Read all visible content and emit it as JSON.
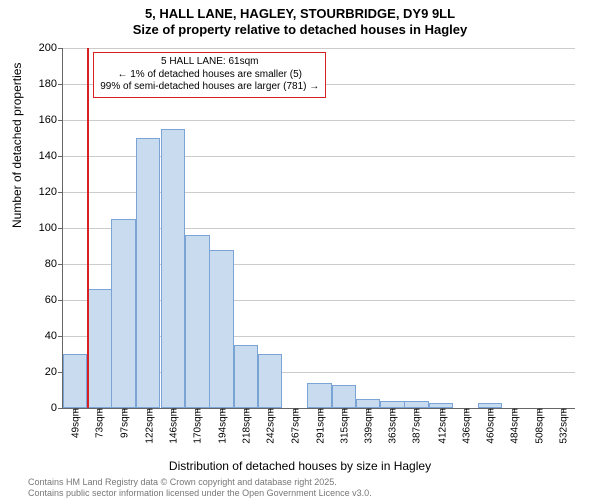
{
  "title_line1": "5, HALL LANE, HAGLEY, STOURBRIDGE, DY9 9LL",
  "title_line2": "Size of property relative to detached houses in Hagley",
  "ylabel": "Number of detached properties",
  "xlabel": "Distribution of detached houses by size in Hagley",
  "footer_line1": "Contains HM Land Registry data © Crown copyright and database right 2025.",
  "footer_line2": "Contains public sector information licensed under the Open Government Licence v3.0.",
  "annotation": {
    "line1": "5 HALL LANE: 61sqm",
    "line2": "← 1% of detached houses are smaller (5)",
    "line3": "99% of semi-detached houses are larger (781) →"
  },
  "chart": {
    "type": "histogram",
    "background_color": "#ffffff",
    "grid_color": "#cccccc",
    "axis_color": "#666666",
    "bar_fill": "#c9dbef",
    "bar_border": "#7aa4d6",
    "marker_color": "#d62021",
    "xlim": [
      37,
      544
    ],
    "ylim": [
      0,
      200
    ],
    "ytick_step": 20,
    "xticks": [
      49,
      73,
      97,
      122,
      146,
      170,
      194,
      218,
      242,
      267,
      291,
      315,
      339,
      363,
      387,
      412,
      436,
      460,
      484,
      508,
      532
    ],
    "xtick_unit": "sqm",
    "bar_width_value": 24.17,
    "marker_x": 61,
    "bars": [
      {
        "x": 37,
        "y": 30
      },
      {
        "x": 61,
        "y": 66
      },
      {
        "x": 85,
        "y": 105
      },
      {
        "x": 109,
        "y": 150
      },
      {
        "x": 134,
        "y": 155
      },
      {
        "x": 158,
        "y": 96
      },
      {
        "x": 182,
        "y": 88
      },
      {
        "x": 206,
        "y": 35
      },
      {
        "x": 230,
        "y": 30
      },
      {
        "x": 254,
        "y": 0
      },
      {
        "x": 279,
        "y": 14
      },
      {
        "x": 303,
        "y": 13
      },
      {
        "x": 327,
        "y": 5
      },
      {
        "x": 351,
        "y": 4
      },
      {
        "x": 375,
        "y": 4
      },
      {
        "x": 399,
        "y": 3
      },
      {
        "x": 424,
        "y": 0
      },
      {
        "x": 448,
        "y": 3
      },
      {
        "x": 472,
        "y": 0
      },
      {
        "x": 496,
        "y": 0
      },
      {
        "x": 520,
        "y": 0
      }
    ],
    "title_fontsize": 13,
    "label_fontsize": 12,
    "tick_fontsize": 11,
    "annotation_fontsize": 10
  }
}
